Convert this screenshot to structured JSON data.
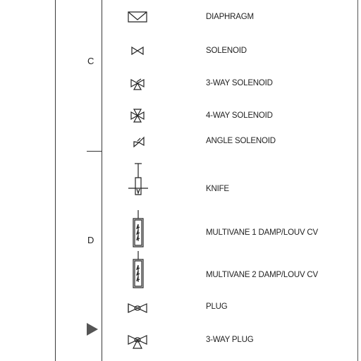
{
  "zones": [
    {
      "letter": "C"
    },
    {
      "letter": "D"
    }
  ],
  "symbols": [
    {
      "label": "DIAPHRAGM",
      "icon": "diaphragm-valve-icon"
    },
    {
      "label": "SOLENOID",
      "icon": "solenoid-valve-icon"
    },
    {
      "label": "3-WAY SOLENOID",
      "icon": "three-way-solenoid-valve-icon"
    },
    {
      "label": "4-WAY SOLENOID",
      "icon": "four-way-solenoid-valve-icon"
    },
    {
      "label": "ANGLE SOLENOID",
      "icon": "angle-solenoid-valve-icon"
    },
    {
      "label": "KNIFE",
      "icon": "knife-valve-icon"
    },
    {
      "label": "MULTIVANE 1 DAMP/LOUV CV",
      "icon": "multivane-damper-icon"
    },
    {
      "label": "MULTIVANE 2 DAMP/LOUV CV",
      "icon": "multivane-damper-icon"
    },
    {
      "label": "PLUG",
      "icon": "plug-valve-icon"
    },
    {
      "label": "3-WAY PLUG",
      "icon": "three-way-plug-valve-icon"
    }
  ]
}
